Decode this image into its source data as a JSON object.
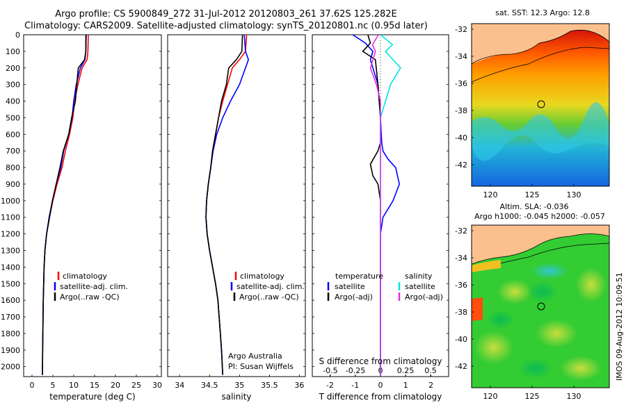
{
  "header": {
    "line1": "Argo profile: CS 5900849_272 31-Jul-2012 20120803_261 37.62S 125.282E",
    "line2": "Climatology: CARS2009. Satellite-adjusted climatology: synTS_20120801.nc (0.95d later)"
  },
  "colors": {
    "climatology": "#ff0000",
    "satellite": "#0000ff",
    "argo": "#000000",
    "sal_satellite": "#00e5e5",
    "sal_argo": "#e52ee5"
  },
  "depth_axis": {
    "ticks": [
      "0",
      "100",
      "200",
      "300",
      "400",
      "500",
      "600",
      "700",
      "800",
      "900",
      "1000",
      "1100",
      "1200",
      "1300",
      "1400",
      "1500",
      "1600",
      "1700",
      "1800",
      "1900",
      "2000"
    ],
    "range": [
      0,
      2060
    ]
  },
  "temperature_panel": {
    "xlabel": "temperature (deg C)",
    "xticks": [
      "0",
      "5",
      "10",
      "15",
      "20",
      "25",
      "30"
    ],
    "legend": [
      "climatology",
      "satellite-adj. clim.",
      "Argo(..raw -QC)"
    ]
  },
  "salinity_panel": {
    "xlabel": "salinity",
    "xticks": [
      "34",
      "34.5",
      "35",
      "35.5",
      "36"
    ],
    "legend": [
      "climatology",
      "satellite-adj. clim.",
      "Argo(..raw -QC)"
    ],
    "note1": "Argo Australia",
    "note2": "PI: Susan Wijffels"
  },
  "difference_panel": {
    "xlabel": "T difference from climatology",
    "xticks": [
      "-2",
      "-1",
      "0",
      "1",
      "2"
    ],
    "top_label": "S difference from climatology",
    "top_ticks": [
      "-0.5",
      "-0.25",
      "0",
      "0.25",
      "0.5"
    ],
    "t_legend_title": "temperature",
    "t_legend": [
      "satellite",
      "Argo(-adj)"
    ],
    "s_legend_title": "salinity",
    "s_legend": [
      "satellite",
      "Argo(-adj)"
    ]
  },
  "sst_map": {
    "title": "sat. SST: 12.3 Argo: 12.8",
    "yticks": [
      "-32",
      "-34",
      "-36",
      "-38",
      "-40",
      "-42"
    ],
    "xticks": [
      "120",
      "125",
      "130"
    ]
  },
  "sla_map": {
    "title1": "Altim. SLA: -0.036",
    "title2": "Argo h1000: -0.045 h2000: -0.057",
    "yticks": [
      "-32",
      "-34",
      "-36",
      "-38",
      "-40",
      "-42"
    ],
    "xticks": [
      "120",
      "125",
      "130"
    ]
  },
  "stamp": "IMOS 09-Aug-2012 10:09:51",
  "chart_data": [
    {
      "type": "line",
      "title": "",
      "xlabel": "temperature (deg C)",
      "ylabel": "",
      "xlim": [
        -2,
        31
      ],
      "ylim": [
        2060,
        0
      ],
      "series": [
        {
          "name": "climatology",
          "x": [
            13.5,
            13.4,
            13.2,
            12.0,
            11.0,
            10.2,
            9.8,
            9.0,
            8.0,
            7.2,
            6.0,
            5.0,
            4.2,
            3.5,
            3.1,
            2.9,
            2.8,
            2.7,
            2.6,
            2.55,
            2.5
          ],
          "y": [
            0,
            100,
            150,
            200,
            300,
            400,
            500,
            600,
            700,
            800,
            900,
            1000,
            1100,
            1200,
            1300,
            1400,
            1500,
            1600,
            1800,
            1900,
            2050
          ]
        },
        {
          "name": "satellite-adj. clim.",
          "x": [
            13.0,
            12.9,
            12.7,
            11.6,
            10.6,
            10.0,
            9.6,
            8.8,
            7.6,
            6.9,
            5.8,
            4.9,
            4.1,
            3.5,
            3.1,
            2.9,
            2.8,
            2.7,
            2.6,
            2.55,
            2.5
          ],
          "y": [
            0,
            100,
            150,
            200,
            300,
            400,
            500,
            600,
            700,
            800,
            900,
            1000,
            1100,
            1200,
            1300,
            1400,
            1500,
            1600,
            1800,
            1900,
            2050
          ]
        },
        {
          "name": "Argo(..raw -QC)",
          "x": [
            12.9,
            12.9,
            12.6,
            11.1,
            10.9,
            10.4,
            9.5,
            8.8,
            7.5,
            6.7,
            5.8,
            4.9,
            4.2,
            3.5,
            3.1,
            2.9,
            2.8,
            2.7,
            2.6,
            2.55,
            2.5
          ],
          "y": [
            0,
            100,
            150,
            200,
            250,
            400,
            500,
            600,
            700,
            800,
            900,
            1000,
            1100,
            1200,
            1300,
            1400,
            1500,
            1600,
            1800,
            1900,
            2050
          ]
        }
      ]
    },
    {
      "type": "line",
      "title": "",
      "xlabel": "salinity",
      "ylabel": "",
      "xlim": [
        33.8,
        36.1
      ],
      "ylim": [
        2060,
        0
      ],
      "series": [
        {
          "name": "climatology",
          "x": [
            35.12,
            35.1,
            35.0,
            34.88,
            34.8,
            34.72,
            34.65,
            34.6,
            34.55,
            34.52,
            34.48,
            34.45,
            34.44,
            34.46,
            34.5,
            34.55,
            34.6,
            34.64,
            34.68,
            34.7,
            34.72
          ],
          "y": [
            0,
            100,
            150,
            200,
            300,
            400,
            500,
            600,
            700,
            800,
            900,
            1000,
            1100,
            1200,
            1300,
            1400,
            1500,
            1600,
            1800,
            1900,
            2050
          ]
        },
        {
          "name": "satellite-adj. clim.",
          "x": [
            35.08,
            35.1,
            35.15,
            35.1,
            35.0,
            34.85,
            34.72,
            34.62,
            34.56,
            34.52,
            34.48,
            34.45,
            34.44,
            34.46,
            34.5,
            34.55,
            34.6,
            34.64,
            34.68,
            34.7,
            34.72
          ],
          "y": [
            0,
            100,
            150,
            200,
            300,
            400,
            500,
            600,
            700,
            800,
            900,
            1000,
            1100,
            1200,
            1300,
            1400,
            1500,
            1600,
            1800,
            1900,
            2050
          ]
        },
        {
          "name": "Argo(..raw -QC)",
          "x": [
            35.05,
            35.04,
            34.95,
            34.82,
            34.78,
            34.7,
            34.65,
            34.6,
            34.55,
            34.52,
            34.48,
            34.45,
            34.44,
            34.46,
            34.5,
            34.55,
            34.6,
            34.64,
            34.68,
            34.7,
            34.72
          ],
          "y": [
            0,
            100,
            150,
            200,
            300,
            400,
            500,
            600,
            700,
            800,
            900,
            1000,
            1100,
            1200,
            1300,
            1400,
            1500,
            1600,
            1800,
            1900,
            2050
          ]
        }
      ]
    },
    {
      "type": "line",
      "title": "",
      "xlabel": "T difference from climatology",
      "ylabel": "",
      "xlim": [
        -2.7,
        2.7
      ],
      "ylim": [
        2060,
        0
      ],
      "series": [
        {
          "name": "satellite",
          "x": [
            -1.1,
            -0.6,
            -0.3,
            -0.4,
            -0.1,
            0.0,
            0.05,
            0.1,
            0.3,
            0.6,
            0.75,
            0.5,
            0.1,
            0.0,
            0.0,
            0.0,
            0.0,
            0.0
          ],
          "y": [
            0,
            50,
            100,
            150,
            300,
            500,
            650,
            700,
            750,
            800,
            900,
            1000,
            1100,
            1200,
            1400,
            1600,
            1800,
            2050
          ]
        },
        {
          "name": "Argo(-adj)",
          "x": [
            -0.5,
            -0.4,
            -0.7,
            -0.2,
            -0.1,
            0.0,
            0.0,
            -0.1,
            -0.4,
            -0.3,
            -0.1,
            0.0,
            0.0,
            0.0,
            0.0,
            0.0,
            0.0
          ],
          "y": [
            0,
            50,
            100,
            150,
            300,
            500,
            650,
            700,
            780,
            850,
            900,
            1000,
            1100,
            1200,
            1400,
            1600,
            2050
          ]
        }
      ]
    },
    {
      "type": "line",
      "title": "",
      "xlabel": "S difference from climatology",
      "ylabel": "",
      "xlim": [
        -0.68,
        0.68
      ],
      "ylim": [
        2060,
        0
      ],
      "series": [
        {
          "name": "satellite",
          "x": [
            0.0,
            0.12,
            0.05,
            0.2,
            0.1,
            0.05,
            0.0,
            0.0,
            0.0,
            0.0,
            0.0
          ],
          "y": [
            0,
            60,
            100,
            200,
            300,
            400,
            500,
            700,
            1000,
            1500,
            2050
          ]
        },
        {
          "name": "Argo(-adj)",
          "x": [
            -0.02,
            -0.08,
            -0.05,
            -0.1,
            -0.04,
            0.0,
            0.0,
            0.0,
            0.0
          ],
          "y": [
            0,
            60,
            100,
            200,
            300,
            400,
            700,
            1400,
            2050
          ]
        }
      ]
    }
  ]
}
